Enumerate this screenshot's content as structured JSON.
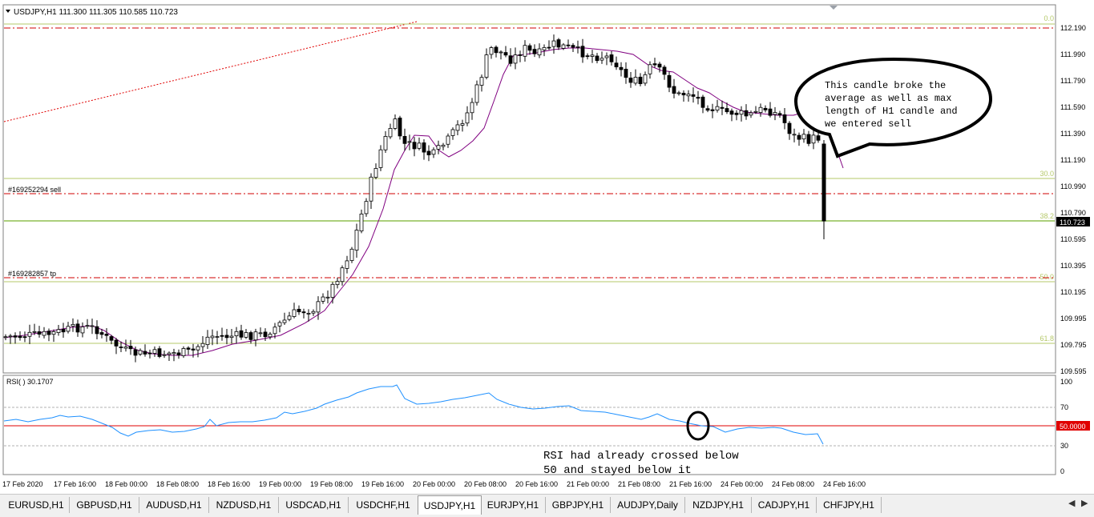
{
  "main_chart": {
    "header": "USDJPY,H1  111.300 111.305 110.585 110.723",
    "price_axis": [
      "112.190",
      "111.990",
      "111.790",
      "111.590",
      "111.390",
      "111.190",
      "110.990",
      "110.790",
      "110.595",
      "110.395",
      "110.195",
      "109.995",
      "109.795",
      "109.595"
    ],
    "current_price": "110.723",
    "fibo_levels": [
      "0.0",
      "30.0",
      "38.2",
      "50.0",
      "61.8"
    ],
    "order_sell_label": "#169252294 sell",
    "order_tp_label": "#169282857 tp",
    "annotation_lines": [
      "This candle broke the",
      "average as well as max",
      "length of H1 candle and",
      "we entered sell"
    ]
  },
  "rsi_panel": {
    "header": "RSI(  ) 30.1707",
    "axis": [
      "100",
      "70",
      "30",
      "0"
    ],
    "level_label": "50.0000",
    "annotation_lines": [
      "RSI had already crossed below",
      "50 and stayed below it"
    ]
  },
  "time_axis": [
    "17 Feb 2020",
    "17 Feb 16:00",
    "18 Feb 00:00",
    "18 Feb 08:00",
    "18 Feb 16:00",
    "19 Feb 00:00",
    "19 Feb 08:00",
    "19 Feb 16:00",
    "20 Feb 00:00",
    "20 Feb 08:00",
    "20 Feb 16:00",
    "21 Feb 00:00",
    "21 Feb 08:00",
    "21 Feb 16:00",
    "24 Feb 00:00",
    "24 Feb 08:00",
    "24 Feb 16:00"
  ],
  "tabs": [
    "EURUSD,H1",
    "GBPUSD,H1",
    "AUDUSD,H1",
    "NZDUSD,H1",
    "USDCAD,H1",
    "USDCHF,H1",
    "USDJPY,H1",
    "EURJPY,H1",
    "GBPJPY,H1",
    "AUDJPY,Daily",
    "NZDJPY,H1",
    "CADJPY,H1",
    "CHFJPY,H1"
  ],
  "active_tab": "USDJPY,H1",
  "colors": {
    "bull": "#ffffff",
    "bear": "#000000",
    "ma": "#800080",
    "rsi": "#1e90ff",
    "fibo": "#b5c86a",
    "order": "#d00000"
  }
}
